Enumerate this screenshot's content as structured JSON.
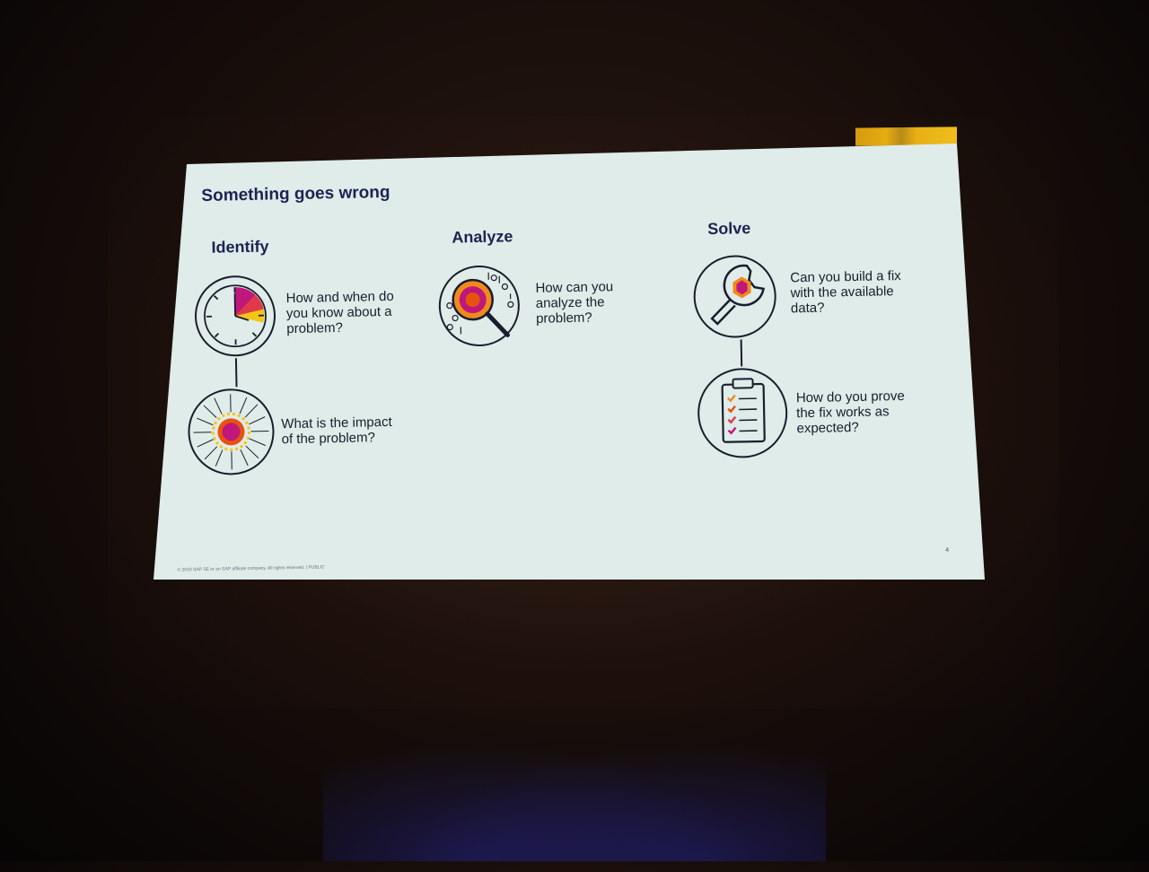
{
  "slide": {
    "title": "Something goes wrong",
    "sections": [
      {
        "heading": "Identify",
        "items": [
          {
            "icon": "clock-icon",
            "question": "How and when do\nyou know about a\nproblem?"
          },
          {
            "icon": "explosion-icon",
            "question": "What is the impact\nof the problem?"
          }
        ]
      },
      {
        "heading": "Analyze",
        "items": [
          {
            "icon": "magnifier-binary-icon",
            "question": "How can you\nanalyze the\nproblem?"
          }
        ]
      },
      {
        "heading": "Solve",
        "items": [
          {
            "icon": "wrench-icon",
            "question": "Can you build a fix\nwith the available\ndata?"
          },
          {
            "icon": "checklist-icon",
            "question": "How do you prove\nthe fix works as\nexpected?"
          }
        ]
      }
    ],
    "footer": "© 2018 SAP SE or an SAP affiliate company. All rights reserved.  |  PUBLIC",
    "page_number": "4"
  },
  "colors": {
    "heading": "#1d2352",
    "slide_background": "#dfece9",
    "accent_gold": "#e6ac12",
    "icon_magenta": "#c0187a",
    "icon_orange": "#f08a1c",
    "icon_yellow": "#f5c516"
  }
}
